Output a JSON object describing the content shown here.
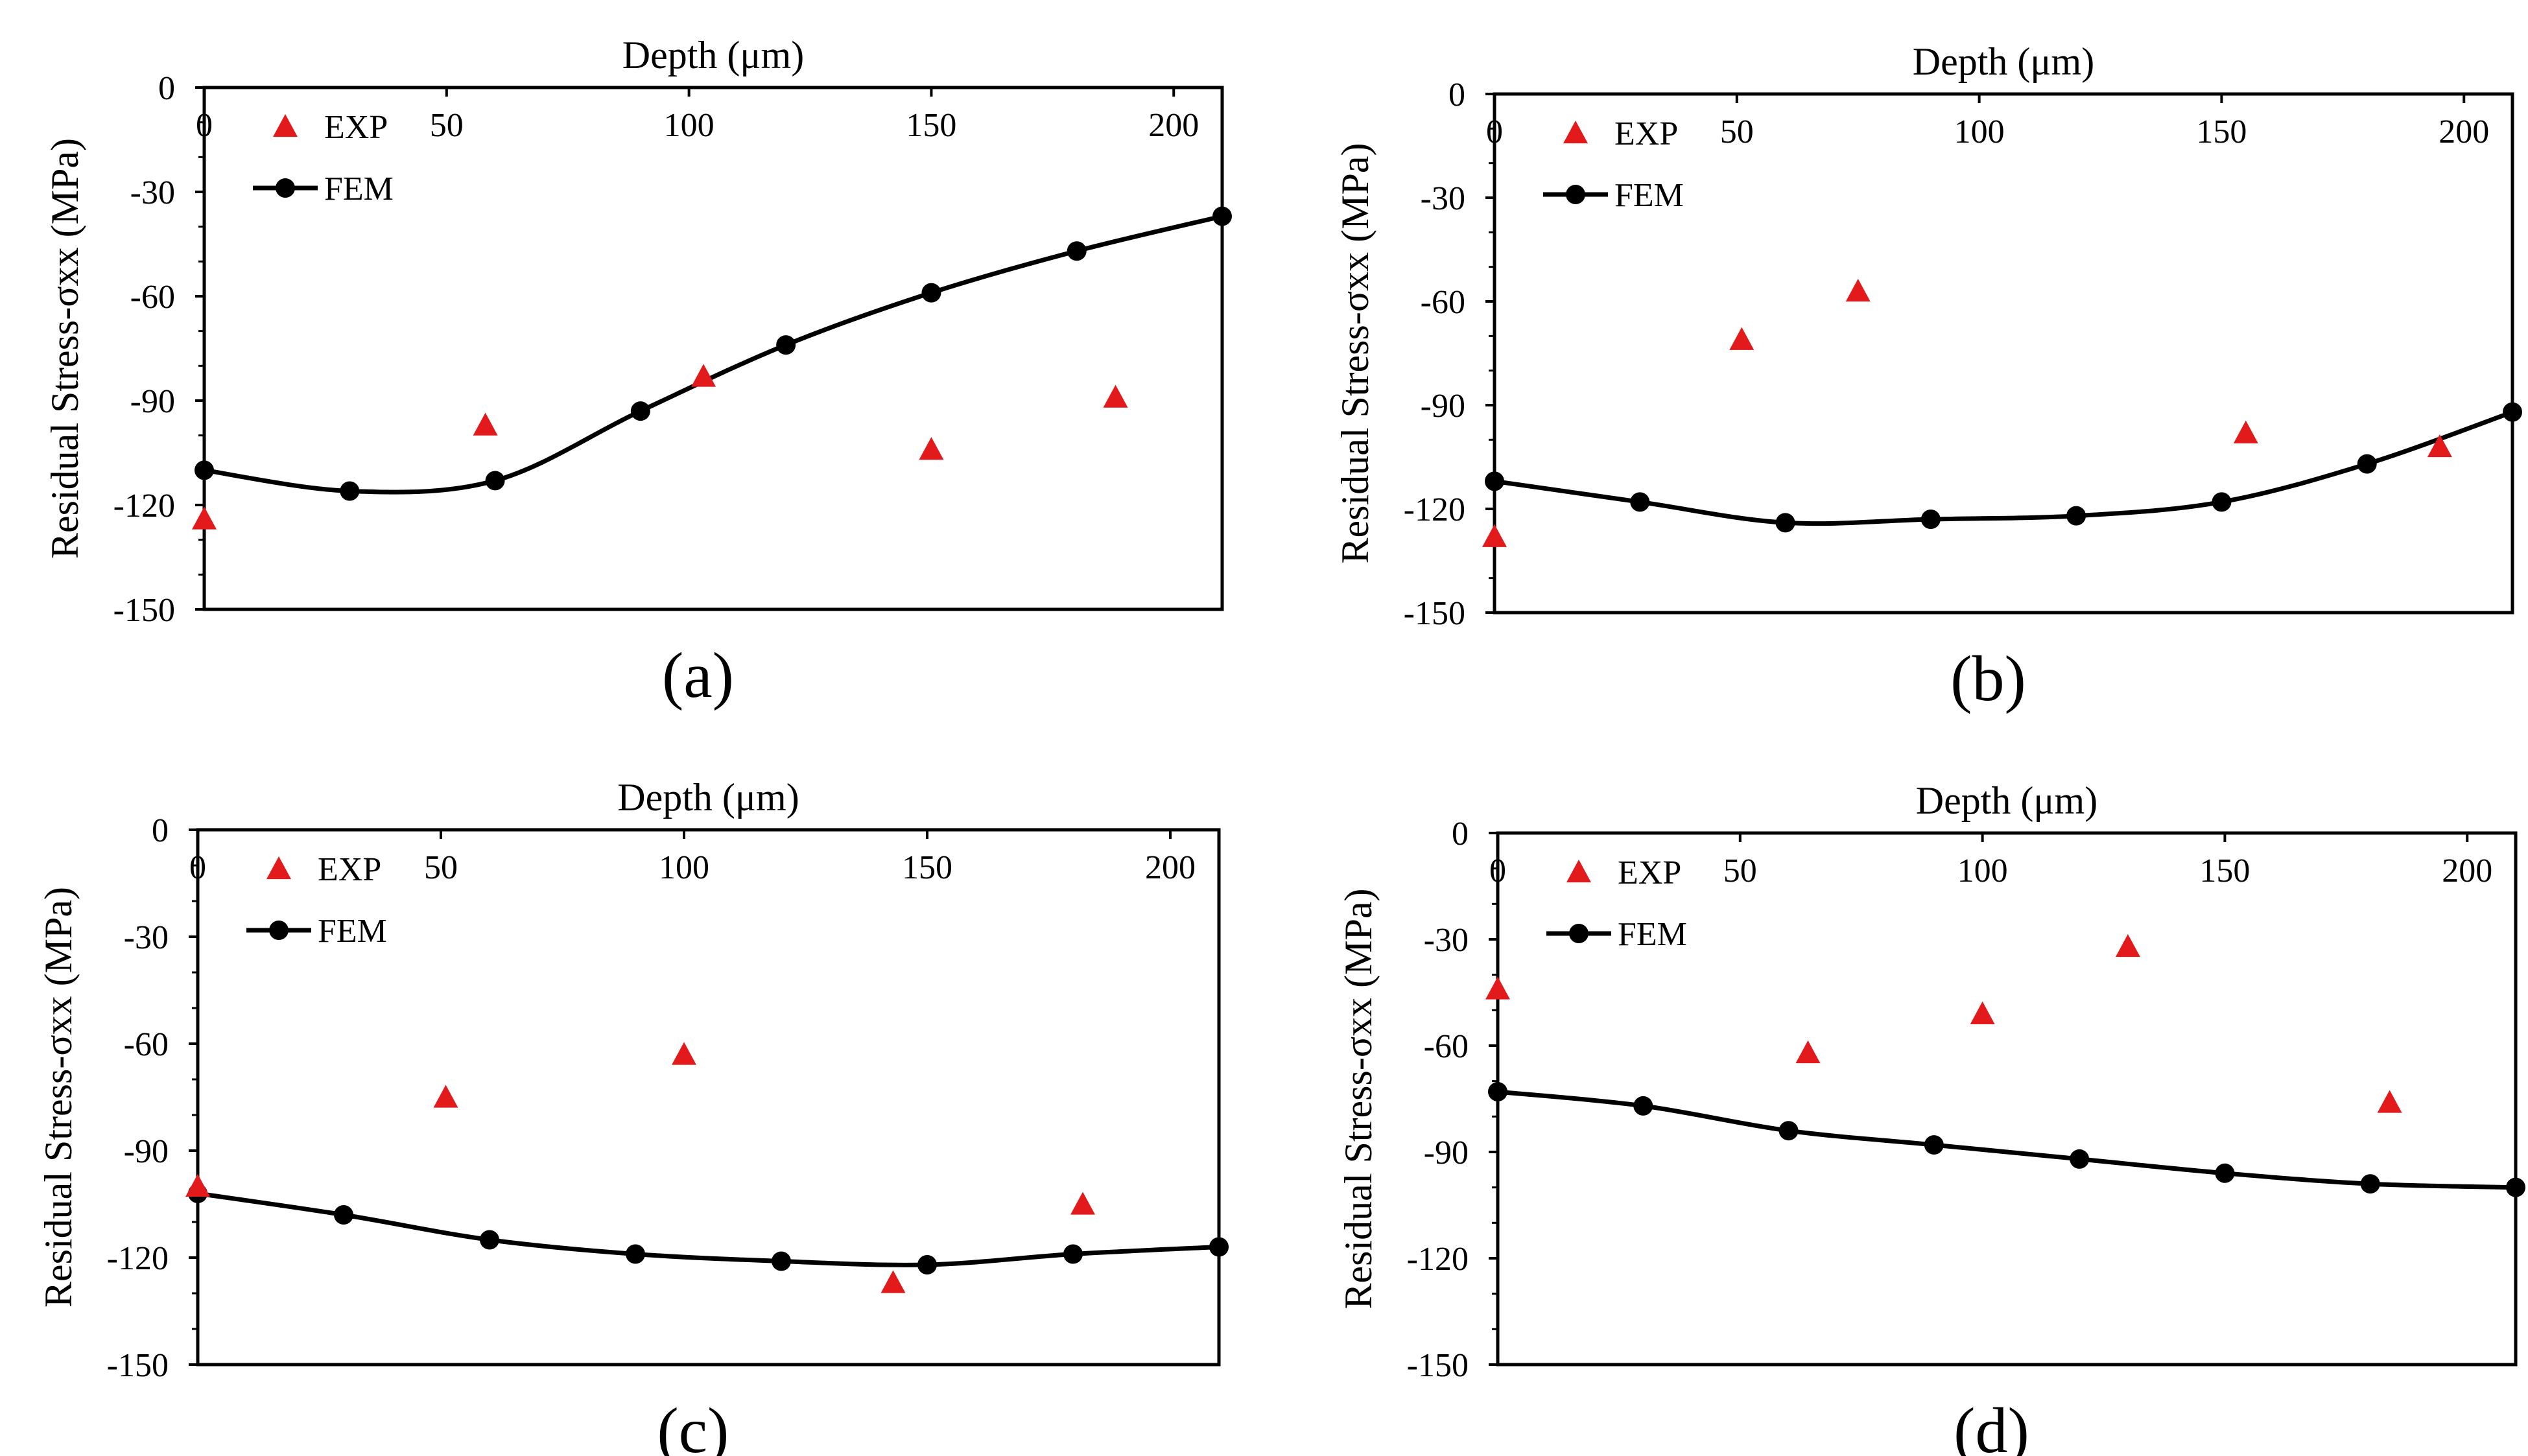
{
  "chart_data": [
    {
      "type": "line",
      "panel_label": "(a)",
      "title": "",
      "xlabel": "Depth (μm)",
      "ylabel": "Residual Stress-σxx  (MPa)",
      "xlim": [
        0,
        210
      ],
      "ylim": [
        -150,
        0
      ],
      "x_ticks": [
        "0",
        "50",
        "100",
        "150",
        "200"
      ],
      "y_ticks": [
        "0",
        "-30",
        "-60",
        "-90",
        "-120",
        "-150"
      ],
      "x_axis_position": "top",
      "legend": [
        "EXP",
        "FEM"
      ],
      "series": [
        {
          "name": "EXP",
          "marker": "triangle",
          "color": "#e31a1c",
          "x": [
            0,
            58,
            103,
            150,
            188
          ],
          "y": [
            -124,
            -97,
            -83,
            -104,
            -89
          ]
        },
        {
          "name": "FEM",
          "marker": "circle",
          "color": "#000000",
          "x": [
            0,
            30,
            60,
            90,
            120,
            150,
            180,
            210
          ],
          "y": [
            -110,
            -116,
            -113,
            -93,
            -74,
            -59,
            -47,
            -37
          ]
        }
      ]
    },
    {
      "type": "line",
      "panel_label": "(b)",
      "title": "",
      "xlabel": "Depth (μm)",
      "ylabel": "Residual Stress-σxx  (MPa)",
      "xlim": [
        0,
        210
      ],
      "ylim": [
        -150,
        0
      ],
      "x_ticks": [
        "0",
        "50",
        "100",
        "150",
        "200"
      ],
      "y_ticks": [
        "0",
        "-30",
        "-60",
        "-90",
        "-120",
        "-150"
      ],
      "x_axis_position": "top",
      "legend": [
        "EXP",
        "FEM"
      ],
      "series": [
        {
          "name": "EXP",
          "marker": "triangle",
          "color": "#e31a1c",
          "x": [
            0,
            51,
            75,
            155,
            195
          ],
          "y": [
            -128,
            -71,
            -57,
            -98,
            -102
          ]
        },
        {
          "name": "FEM",
          "marker": "circle",
          "color": "#000000",
          "x": [
            0,
            30,
            60,
            90,
            120,
            150,
            180,
            210
          ],
          "y": [
            -112,
            -118,
            -124,
            -123,
            -122,
            -118,
            -107,
            -92
          ]
        }
      ]
    },
    {
      "type": "line",
      "panel_label": "(c)",
      "title": "",
      "xlabel": "Depth (μm)",
      "ylabel": "Residual Stress-σxx  (MPa)",
      "xlim": [
        0,
        210
      ],
      "ylim": [
        -150,
        0
      ],
      "x_ticks": [
        "0",
        "50",
        "100",
        "150",
        "200"
      ],
      "y_ticks": [
        "0",
        "-30",
        "-60",
        "-90",
        "-120",
        "-150"
      ],
      "x_axis_position": "top",
      "legend": [
        "EXP",
        "FEM"
      ],
      "series": [
        {
          "name": "EXP",
          "marker": "triangle",
          "color": "#e31a1c",
          "x": [
            0,
            51,
            100,
            143,
            182
          ],
          "y": [
            -100,
            -75,
            -63,
            -127,
            -105
          ]
        },
        {
          "name": "FEM",
          "marker": "circle",
          "color": "#000000",
          "x": [
            0,
            30,
            60,
            90,
            120,
            150,
            180,
            210
          ],
          "y": [
            -102,
            -108,
            -115,
            -119,
            -121,
            -122,
            -119,
            -117
          ]
        }
      ]
    },
    {
      "type": "line",
      "panel_label": "(d)",
      "title": "",
      "xlabel": "Depth (μm)",
      "ylabel": "Residual Stress-σxx  (MPa)",
      "xlim": [
        0,
        210
      ],
      "ylim": [
        -150,
        0
      ],
      "x_ticks": [
        "0",
        "50",
        "100",
        "150",
        "200"
      ],
      "y_ticks": [
        "0",
        "-30",
        "-60",
        "-90",
        "-120",
        "-150"
      ],
      "x_axis_position": "top",
      "legend": [
        "EXP",
        "FEM"
      ],
      "series": [
        {
          "name": "EXP",
          "marker": "triangle",
          "color": "#e31a1c",
          "x": [
            0,
            64,
            100,
            130,
            184
          ],
          "y": [
            -44,
            -62,
            -51,
            -32,
            -76
          ]
        },
        {
          "name": "FEM",
          "marker": "circle",
          "color": "#000000",
          "x": [
            0,
            30,
            60,
            90,
            120,
            150,
            180,
            210
          ],
          "y": [
            -73,
            -77,
            -84,
            -88,
            -92,
            -96,
            -99,
            -100
          ]
        }
      ]
    }
  ]
}
